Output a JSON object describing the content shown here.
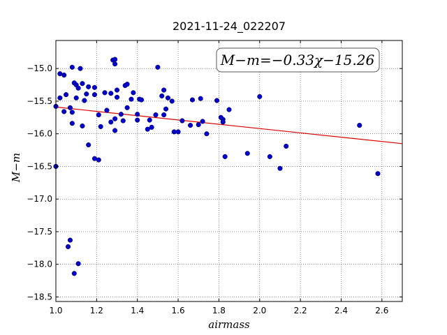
{
  "chart_data": {
    "type": "scatter",
    "title": "2021-11-24_022207",
    "xlabel": "airmass",
    "ylabel": "M−m",
    "xlim": [
      1.0,
      2.7
    ],
    "ylim": [
      -18.57,
      -14.57
    ],
    "xticks": [
      "1.0",
      "1.2",
      "1.4",
      "1.6",
      "1.8",
      "2.0",
      "2.2",
      "2.4",
      "2.6"
    ],
    "yticks": [
      "−15.0",
      "−15.5",
      "−16.0",
      "−16.5",
      "−17.0",
      "−17.5",
      "−18.0",
      "−18.5"
    ],
    "grid": true,
    "point_color": "#0000cc",
    "fit_color": "#dd0000",
    "fit": {
      "label": "M−m=−0.33χ−15.26",
      "slope": -0.33,
      "intercept": -15.26
    },
    "points": [
      [
        1.0,
        -15.58
      ],
      [
        1.0,
        -16.5
      ],
      [
        1.02,
        -15.08
      ],
      [
        1.02,
        -15.45
      ],
      [
        1.04,
        -15.1
      ],
      [
        1.04,
        -15.66
      ],
      [
        1.05,
        -15.4
      ],
      [
        1.06,
        -17.73
      ],
      [
        1.07,
        -17.63
      ],
      [
        1.07,
        -15.6
      ],
      [
        1.08,
        -15.67
      ],
      [
        1.08,
        -14.98
      ],
      [
        1.08,
        -15.84
      ],
      [
        1.09,
        -18.14
      ],
      [
        1.09,
        -15.22
      ],
      [
        1.1,
        -15.25
      ],
      [
        1.1,
        -15.45
      ],
      [
        1.11,
        -15.3
      ],
      [
        1.11,
        -17.99
      ],
      [
        1.12,
        -15.0
      ],
      [
        1.13,
        -15.23
      ],
      [
        1.13,
        -15.88
      ],
      [
        1.14,
        -15.49
      ],
      [
        1.15,
        -15.39
      ],
      [
        1.16,
        -15.28
      ],
      [
        1.16,
        -16.17
      ],
      [
        1.19,
        -15.4
      ],
      [
        1.19,
        -15.29
      ],
      [
        1.19,
        -16.38
      ],
      [
        1.21,
        -15.71
      ],
      [
        1.21,
        -16.4
      ],
      [
        1.22,
        -15.89
      ],
      [
        1.24,
        -15.37
      ],
      [
        1.25,
        -15.64
      ],
      [
        1.27,
        -15.38
      ],
      [
        1.27,
        -15.82
      ],
      [
        1.28,
        -14.87
      ],
      [
        1.29,
        -15.77
      ],
      [
        1.29,
        -15.95
      ],
      [
        1.29,
        -14.86
      ],
      [
        1.29,
        -14.93
      ],
      [
        1.3,
        -15.33
      ],
      [
        1.3,
        -15.44
      ],
      [
        1.32,
        -15.7
      ],
      [
        1.33,
        -15.8
      ],
      [
        1.34,
        -15.26
      ],
      [
        1.35,
        -15.24
      ],
      [
        1.35,
        -15.6
      ],
      [
        1.37,
        -15.47
      ],
      [
        1.38,
        -15.37
      ],
      [
        1.4,
        -15.7
      ],
      [
        1.4,
        -15.79
      ],
      [
        1.41,
        -15.47
      ],
      [
        1.42,
        -15.48
      ],
      [
        1.45,
        -15.93
      ],
      [
        1.46,
        -15.79
      ],
      [
        1.47,
        -15.9
      ],
      [
        1.49,
        -15.71
      ],
      [
        1.5,
        -14.98
      ],
      [
        1.52,
        -15.42
      ],
      [
        1.53,
        -15.33
      ],
      [
        1.53,
        -15.71
      ],
      [
        1.54,
        -15.62
      ],
      [
        1.55,
        -15.45
      ],
      [
        1.57,
        -15.5
      ],
      [
        1.58,
        -15.97
      ],
      [
        1.6,
        -15.97
      ],
      [
        1.62,
        -15.8
      ],
      [
        1.66,
        -15.87
      ],
      [
        1.67,
        -15.48
      ],
      [
        1.7,
        -15.86
      ],
      [
        1.71,
        -15.46
      ],
      [
        1.72,
        -15.81
      ],
      [
        1.74,
        -16.0
      ],
      [
        1.79,
        -15.49
      ],
      [
        1.81,
        -15.75
      ],
      [
        1.82,
        -15.78
      ],
      [
        1.82,
        -15.82
      ],
      [
        1.83,
        -16.35
      ],
      [
        1.85,
        -15.63
      ],
      [
        1.94,
        -16.3
      ],
      [
        2.0,
        -15.43
      ],
      [
        2.05,
        -16.35
      ],
      [
        2.1,
        -16.53
      ],
      [
        2.13,
        -16.19
      ],
      [
        2.49,
        -15.87
      ],
      [
        2.58,
        -16.61
      ]
    ]
  }
}
